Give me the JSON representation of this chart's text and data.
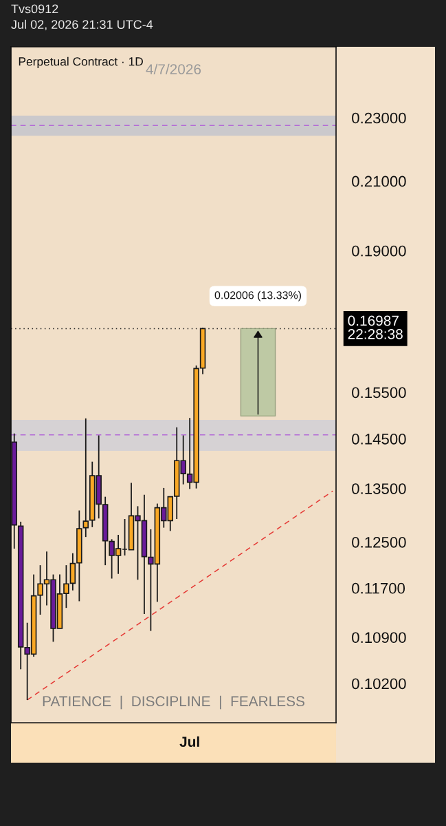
{
  "chart_data": {
    "type": "candlestick",
    "title": "Perpetual Contract · 1D",
    "subtitle": "Tvs0912\nJul 02, 2026 21:31 UTC-4",
    "categories": [
      null,
      null,
      null,
      null,
      null,
      null,
      null,
      null,
      null,
      null,
      null,
      null,
      null,
      null,
      null,
      null,
      null,
      null,
      null,
      null,
      null,
      null,
      null,
      null,
      null,
      null,
      null,
      null,
      null,
      null,
      null,
      null,
      null,
      null,
      null,
      null,
      null,
      null,
      null,
      null,
      null,
      null,
      null,
      null,
      null,
      null,
      null,
      null,
      null,
      null
    ],
    "ohlc": [
      [
        0.1443,
        0.1461,
        0.1238,
        0.1281
      ],
      [
        0.1279,
        0.1287,
        0.1041,
        0.1075
      ],
      [
        0.1074,
        0.1113,
        0.0996,
        0.1064
      ],
      [
        0.1064,
        0.1193,
        0.106,
        0.1157
      ],
      [
        0.1158,
        0.1209,
        0.1126,
        0.1177
      ],
      [
        0.1177,
        0.1233,
        0.1141,
        0.1184
      ],
      [
        0.1184,
        0.1193,
        0.1083,
        0.1104
      ],
      [
        0.1104,
        0.1193,
        0.1104,
        0.116
      ],
      [
        0.1161,
        0.1209,
        0.1137,
        0.1177
      ],
      [
        0.1178,
        0.123,
        0.1166,
        0.1212
      ],
      [
        0.1213,
        0.1308,
        0.1148,
        0.1274
      ],
      [
        0.1276,
        0.1493,
        0.1259,
        0.1288
      ],
      [
        0.129,
        0.1403,
        0.1277,
        0.1375
      ],
      [
        0.1375,
        0.1457,
        0.1293,
        0.132
      ],
      [
        0.1319,
        0.1334,
        0.1209,
        0.1252
      ],
      [
        0.1251,
        0.1255,
        0.1186,
        0.1226
      ],
      [
        0.1226,
        0.1263,
        0.1194,
        0.1238
      ],
      [
        0.1237,
        0.1292,
        0.1226,
        0.1237
      ],
      [
        0.1236,
        0.1361,
        0.1236,
        0.1298
      ],
      [
        0.1298,
        0.1316,
        0.1184,
        0.1289
      ],
      [
        0.1289,
        0.1338,
        0.1127,
        0.1224
      ],
      [
        0.1223,
        0.1273,
        0.11,
        0.1211
      ],
      [
        0.1211,
        0.1321,
        0.1147,
        0.1313
      ],
      [
        0.1313,
        0.1351,
        0.1276,
        0.1289
      ],
      [
        0.1289,
        0.1334,
        0.127,
        0.1334
      ],
      [
        0.1335,
        0.1474,
        0.1292,
        0.1405
      ],
      [
        0.1405,
        0.1457,
        0.1358,
        0.1379
      ],
      [
        0.1378,
        0.1494,
        0.1349,
        0.1362
      ],
      [
        0.1362,
        0.1611,
        0.135,
        0.1604
      ],
      [
        0.1605,
        0.1701,
        0.1591,
        0.16987
      ],
      null,
      null,
      null,
      null,
      null,
      null,
      null,
      null,
      null,
      null,
      null,
      null,
      null,
      null,
      null,
      null,
      null,
      null,
      null,
      null
    ],
    "colors": [
      "#6a1b9a",
      "#6a1b9a",
      "#6a1b9a",
      "#f9a825",
      "#f9a825",
      "#f9a825",
      "#6a1b9a",
      "#f9a825",
      "#f9a825",
      "#f9a825",
      "#f9a825",
      "#f9a825",
      "#f9a825",
      "#6a1b9a",
      "#6a1b9a",
      "#6a1b9a",
      "#f9a825",
      "#1a1a1a",
      "#f9a825",
      "#6a1b9a",
      "#6a1b9a",
      "#6a1b9a",
      "#f9a825",
      "#6a1b9a",
      "#f9a825",
      "#f9a825",
      "#6a1b9a",
      "#6a1b9a",
      "#f9a825",
      "#f9a825",
      null,
      null,
      null,
      null,
      null,
      null,
      null,
      null,
      null,
      null,
      null,
      null,
      null,
      null,
      null,
      null,
      null,
      null,
      null,
      null
    ],
    "series": [
      {
        "type": "line",
        "color": "#e53935",
        "line_style": "dashed",
        "values": [
          null,
          null,
          0.0996,
          null,
          null,
          null,
          null,
          null,
          null,
          null,
          null,
          null,
          null,
          null,
          null,
          null,
          null,
          null,
          null,
          null,
          null,
          null,
          null,
          null,
          null,
          null,
          null,
          null,
          null,
          null,
          null,
          null,
          null,
          null,
          null,
          null,
          null,
          null,
          null,
          null,
          null,
          null,
          null,
          null,
          null,
          null,
          null,
          null,
          null,
          0.1345
        ]
      }
    ],
    "log": true,
    "ylim": [
      0.0964,
      0.2547
    ],
    "yticks": [
      {
        "value": 0.23,
        "label": "0.23000"
      },
      {
        "value": 0.21,
        "label": "0.21000"
      },
      {
        "value": 0.19,
        "label": "0.19000"
      },
      {
        "value": 0.155,
        "label": "0.15500"
      },
      {
        "value": 0.145,
        "label": "0.14500"
      },
      {
        "value": 0.135,
        "label": "0.13500"
      },
      {
        "value": 0.125,
        "label": "0.12500"
      },
      {
        "value": 0.117,
        "label": "0.11700"
      },
      {
        "value": 0.109,
        "label": "0.10900"
      },
      {
        "value": 0.102,
        "label": "0.10200"
      }
    ],
    "bands": [
      {
        "axis": "y",
        "from": 0.2241,
        "to": 0.2307,
        "color": "#cbc9cc"
      },
      {
        "axis": "y",
        "from": 0.1425,
        "to": 0.149,
        "color": "#d6d2d4"
      }
    ],
    "ref_lines": [
      {
        "axis": "y",
        "value": 0.2275,
        "color": "#b36bd6",
        "line_style": "dashed"
      },
      {
        "axis": "y",
        "value": 0.1458,
        "color": "#b36bd6",
        "line_style": "dashed"
      },
      {
        "axis": "y",
        "value": 0.16987,
        "color": "#222222",
        "line_style": "dotted",
        "label": "0.16987\n22:28:38"
      }
    ],
    "annotations": [
      {
        "text": "0.02006 (13.33%)",
        "y": 0.16987
      },
      "4/7/2026",
      "PATIENCE  |  DISCIPLINE  |  FEARLESS",
      "Jul"
    ],
    "grid": false,
    "legend": false
  }
}
